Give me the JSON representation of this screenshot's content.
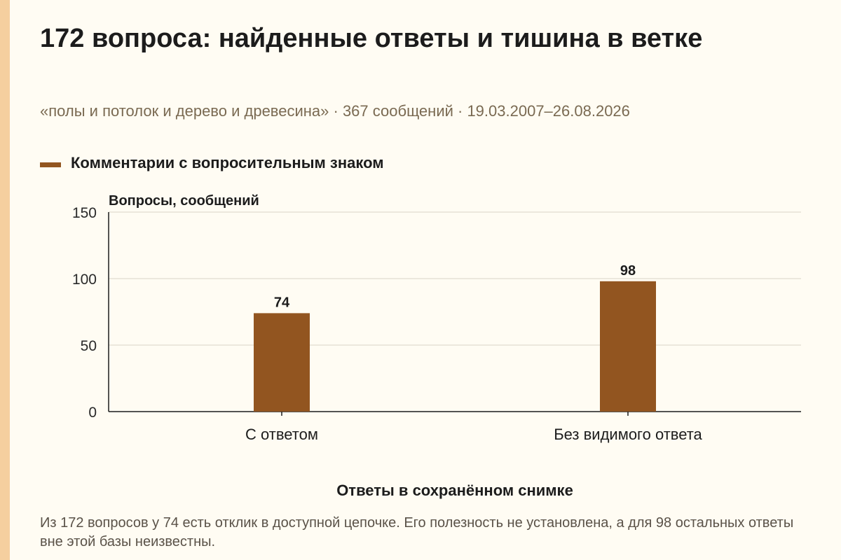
{
  "page": {
    "title": "172 вопроса: найденные ответы и тишина в ветке",
    "subtitle": "«полы и потолок и дерево и древесина» · 367 сообщений · 19.03.2007–26.08.2026",
    "footnote": "Из 172 вопросов у 74 есть отклик в доступной цепочке. Его полезность не установлена, а для 98 остальных ответы вне этой базы неизвестны."
  },
  "colors": {
    "accent_stripe": "#f5cf9f",
    "bar": "#925520",
    "background": "#fffcf3"
  },
  "chart_data": {
    "type": "bar",
    "categories": [
      "С ответом",
      "Без видимого ответа"
    ],
    "series": [
      {
        "name": "Комментарии с вопросительным знаком",
        "values": [
          74,
          98
        ],
        "color": "#925520"
      }
    ],
    "data_labels": [
      "74",
      "98"
    ],
    "ylabel": "Вопросы, сообщений",
    "xlabel": "Ответы в сохранённом снимке",
    "ylim": [
      0,
      150
    ],
    "yticks": [
      0,
      50,
      100,
      150
    ],
    "grid": true,
    "legend": "top-left"
  }
}
